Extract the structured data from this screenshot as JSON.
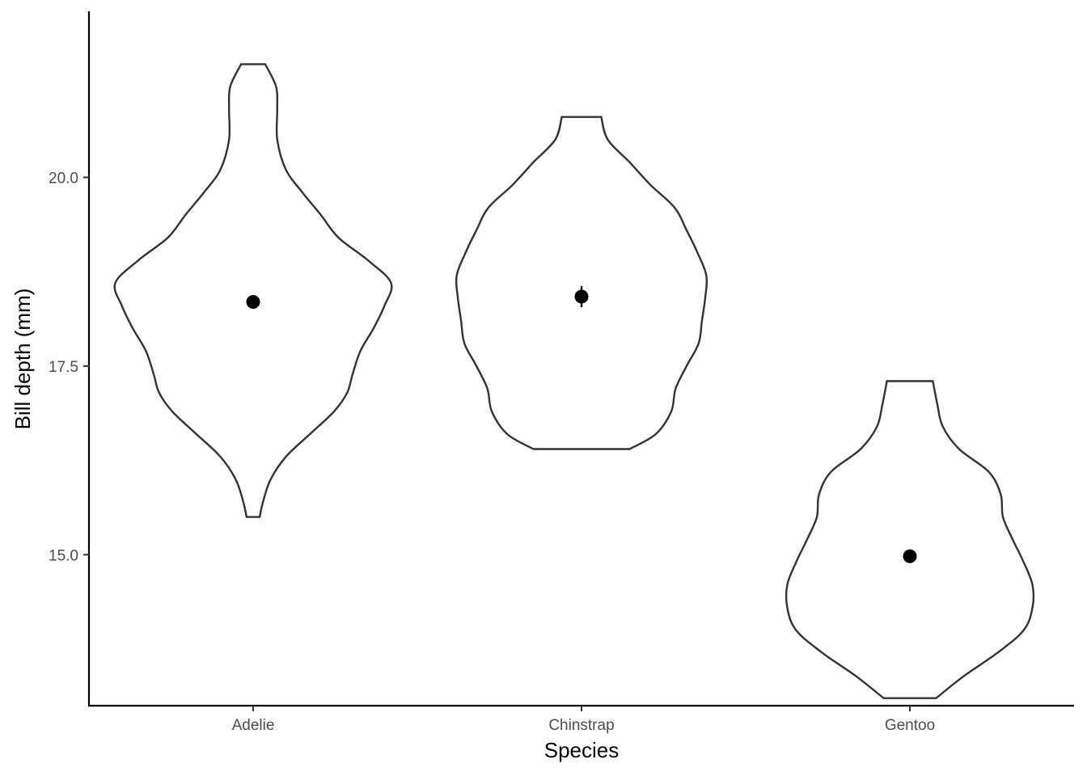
{
  "chart_data": {
    "type": "violin",
    "title": "",
    "xlabel": "Species",
    "ylabel": "Bill depth (mm)",
    "ylim": [
      13.0,
      22.2
    ],
    "yticks": [
      15.0,
      17.5,
      20.0
    ],
    "ytick_labels": [
      "15.0",
      "17.5",
      "20.0"
    ],
    "categories": [
      "Adelie",
      "Chinstrap",
      "Gentoo"
    ],
    "grid": false,
    "legend": "none",
    "series": [
      {
        "category": "Adelie",
        "mean": 18.35,
        "se": 0.05,
        "density": [
          [
            15.5,
            0.06
          ],
          [
            15.7,
            0.09
          ],
          [
            16.0,
            0.16
          ],
          [
            16.3,
            0.3
          ],
          [
            16.6,
            0.52
          ],
          [
            16.9,
            0.74
          ],
          [
            17.15,
            0.86
          ],
          [
            17.4,
            0.91
          ],
          [
            17.7,
            0.98
          ],
          [
            18.0,
            1.1
          ],
          [
            18.3,
            1.2
          ],
          [
            18.6,
            1.26
          ],
          [
            18.9,
            1.05
          ],
          [
            19.2,
            0.78
          ],
          [
            19.5,
            0.62
          ],
          [
            19.8,
            0.45
          ],
          [
            20.1,
            0.3
          ],
          [
            20.5,
            0.22
          ],
          [
            20.9,
            0.22
          ],
          [
            21.2,
            0.21
          ],
          [
            21.5,
            0.11
          ]
        ]
      },
      {
        "category": "Chinstrap",
        "mean": 18.42,
        "se": 0.14,
        "density": [
          [
            16.4,
            0.44
          ],
          [
            16.6,
            0.68
          ],
          [
            16.9,
            0.82
          ],
          [
            17.2,
            0.86
          ],
          [
            17.5,
            0.96
          ],
          [
            17.8,
            1.07
          ],
          [
            18.1,
            1.1
          ],
          [
            18.4,
            1.13
          ],
          [
            18.7,
            1.14
          ],
          [
            19.0,
            1.06
          ],
          [
            19.3,
            0.96
          ],
          [
            19.6,
            0.85
          ],
          [
            19.9,
            0.63
          ],
          [
            20.2,
            0.44
          ],
          [
            20.5,
            0.24
          ],
          [
            20.8,
            0.18
          ]
        ]
      },
      {
        "category": "Gentoo",
        "mean": 14.98,
        "se": 0.07,
        "density": [
          [
            13.1,
            0.24
          ],
          [
            13.4,
            0.5
          ],
          [
            13.7,
            0.8
          ],
          [
            14.0,
            1.04
          ],
          [
            14.3,
            1.12
          ],
          [
            14.6,
            1.12
          ],
          [
            14.9,
            1.04
          ],
          [
            15.2,
            0.94
          ],
          [
            15.5,
            0.85
          ],
          [
            15.8,
            0.83
          ],
          [
            16.1,
            0.72
          ],
          [
            16.4,
            0.45
          ],
          [
            16.7,
            0.3
          ],
          [
            17.0,
            0.25
          ],
          [
            17.3,
            0.21
          ]
        ]
      }
    ]
  }
}
